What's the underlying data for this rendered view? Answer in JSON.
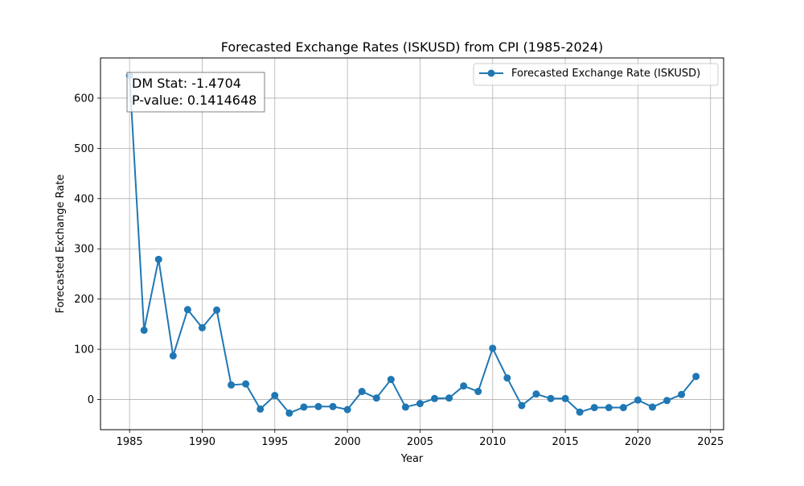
{
  "chart_data": {
    "type": "line",
    "title": "Forecasted Exchange Rates (ISKUSD) from CPI (1985-2024)",
    "xlabel": "Year",
    "ylabel": "Forecasted Exchange Rate",
    "xlim": [
      1983,
      2025.9
    ],
    "ylim": [
      -60,
      680
    ],
    "x_ticks": [
      1985,
      1990,
      1995,
      2000,
      2005,
      2010,
      2015,
      2020,
      2025
    ],
    "y_ticks": [
      0,
      100,
      200,
      300,
      400,
      500,
      600
    ],
    "grid": true,
    "legend_position": "top-right",
    "series": [
      {
        "name": "Forecasted Exchange Rate (ISKUSD)",
        "color": "#1f77b4",
        "marker": "circle",
        "x": [
          1985,
          1986,
          1987,
          1988,
          1989,
          1990,
          1991,
          1992,
          1993,
          1994,
          1995,
          1996,
          1997,
          1998,
          1999,
          2000,
          2001,
          2002,
          2003,
          2004,
          2005,
          2006,
          2007,
          2008,
          2009,
          2010,
          2011,
          2012,
          2013,
          2014,
          2015,
          2016,
          2017,
          2018,
          2019,
          2020,
          2021,
          2022,
          2023,
          2024
        ],
        "y": [
          645,
          138,
          279,
          87,
          179,
          143,
          178,
          29,
          31,
          -19,
          8,
          -27,
          -15,
          -14,
          -14,
          -20,
          16,
          3,
          40,
          -15,
          -8,
          2,
          3,
          27,
          16,
          102,
          43,
          -12,
          11,
          2,
          2,
          -25,
          -16,
          -16,
          -16,
          -1,
          -15,
          -2,
          10,
          46
        ]
      }
    ],
    "annotation": {
      "line1": "DM Stat: -1.4704",
      "line2": "P-value: 0.1414648",
      "position": "top-left"
    }
  }
}
